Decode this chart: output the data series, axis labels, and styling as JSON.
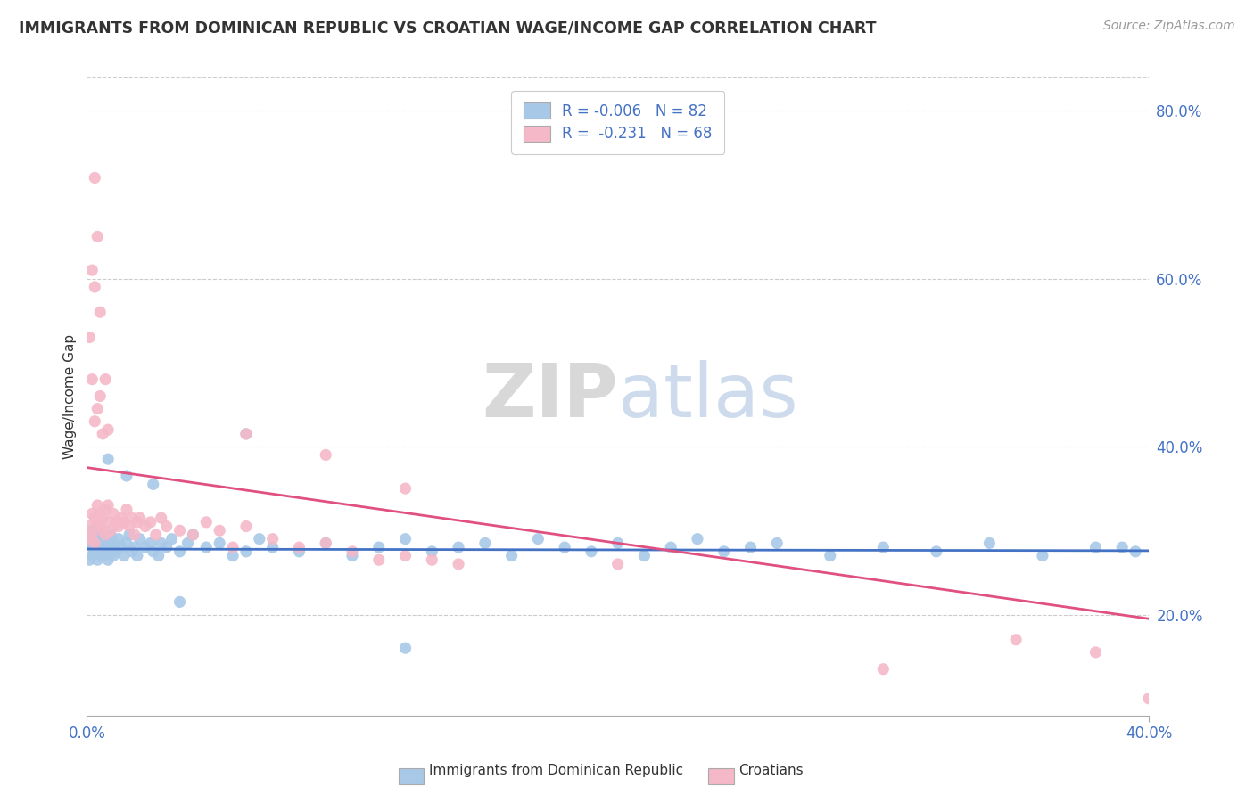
{
  "title": "IMMIGRANTS FROM DOMINICAN REPUBLIC VS CROATIAN WAGE/INCOME GAP CORRELATION CHART",
  "source_text": "Source: ZipAtlas.com",
  "ylabel": "Wage/Income Gap",
  "right_yticks": [
    "20.0%",
    "40.0%",
    "60.0%",
    "80.0%"
  ],
  "right_ytick_vals": [
    0.2,
    0.4,
    0.6,
    0.8
  ],
  "xmin": 0.0,
  "xmax": 0.4,
  "ymin": 0.08,
  "ymax": 0.84,
  "color_blue": "#a8c8e8",
  "color_pink": "#f4b8c8",
  "color_blue_text": "#4472c4",
  "color_line_blue": "#4472c4",
  "color_line_pink": "#e05080",
  "legend_label_blue": "Immigrants from Dominican Republic",
  "legend_label_pink": "Croatians",
  "blue_line_y0": 0.278,
  "blue_line_y1": 0.276,
  "pink_line_y0": 0.375,
  "pink_line_y1": 0.195,
  "blue_scatter_x": [
    0.001,
    0.001,
    0.001,
    0.002,
    0.002,
    0.002,
    0.003,
    0.003,
    0.003,
    0.004,
    0.004,
    0.005,
    0.005,
    0.006,
    0.006,
    0.007,
    0.007,
    0.008,
    0.008,
    0.009,
    0.009,
    0.01,
    0.01,
    0.011,
    0.012,
    0.013,
    0.014,
    0.015,
    0.016,
    0.017,
    0.018,
    0.019,
    0.02,
    0.022,
    0.024,
    0.025,
    0.027,
    0.028,
    0.03,
    0.032,
    0.035,
    0.038,
    0.04,
    0.045,
    0.05,
    0.055,
    0.06,
    0.065,
    0.07,
    0.08,
    0.09,
    0.1,
    0.11,
    0.12,
    0.13,
    0.14,
    0.15,
    0.16,
    0.17,
    0.18,
    0.19,
    0.2,
    0.21,
    0.22,
    0.23,
    0.24,
    0.26,
    0.28,
    0.3,
    0.32,
    0.34,
    0.36,
    0.38,
    0.395,
    0.008,
    0.015,
    0.025,
    0.035,
    0.06,
    0.12,
    0.25,
    0.39
  ],
  "blue_scatter_y": [
    0.285,
    0.295,
    0.265,
    0.28,
    0.3,
    0.27,
    0.29,
    0.275,
    0.285,
    0.295,
    0.265,
    0.28,
    0.295,
    0.27,
    0.285,
    0.29,
    0.275,
    0.285,
    0.265,
    0.28,
    0.295,
    0.27,
    0.285,
    0.275,
    0.29,
    0.28,
    0.27,
    0.285,
    0.295,
    0.275,
    0.28,
    0.27,
    0.29,
    0.28,
    0.285,
    0.275,
    0.27,
    0.285,
    0.28,
    0.29,
    0.275,
    0.285,
    0.295,
    0.28,
    0.285,
    0.27,
    0.275,
    0.29,
    0.28,
    0.275,
    0.285,
    0.27,
    0.28,
    0.29,
    0.275,
    0.28,
    0.285,
    0.27,
    0.29,
    0.28,
    0.275,
    0.285,
    0.27,
    0.28,
    0.29,
    0.275,
    0.285,
    0.27,
    0.28,
    0.275,
    0.285,
    0.27,
    0.28,
    0.275,
    0.385,
    0.365,
    0.355,
    0.215,
    0.415,
    0.16,
    0.28,
    0.28
  ],
  "pink_scatter_x": [
    0.001,
    0.001,
    0.002,
    0.002,
    0.003,
    0.003,
    0.004,
    0.004,
    0.005,
    0.005,
    0.006,
    0.006,
    0.007,
    0.007,
    0.008,
    0.008,
    0.009,
    0.01,
    0.011,
    0.012,
    0.013,
    0.014,
    0.015,
    0.016,
    0.017,
    0.018,
    0.019,
    0.02,
    0.022,
    0.024,
    0.026,
    0.028,
    0.03,
    0.035,
    0.04,
    0.045,
    0.05,
    0.055,
    0.06,
    0.07,
    0.08,
    0.09,
    0.1,
    0.11,
    0.12,
    0.13,
    0.14,
    0.003,
    0.004,
    0.005,
    0.006,
    0.007,
    0.008,
    0.001,
    0.002,
    0.003,
    0.004,
    0.002,
    0.003,
    0.005,
    0.06,
    0.09,
    0.12,
    0.2,
    0.3,
    0.35,
    0.38,
    0.4
  ],
  "pink_scatter_y": [
    0.305,
    0.29,
    0.32,
    0.295,
    0.315,
    0.285,
    0.33,
    0.31,
    0.305,
    0.32,
    0.3,
    0.315,
    0.325,
    0.295,
    0.31,
    0.33,
    0.3,
    0.32,
    0.31,
    0.305,
    0.315,
    0.31,
    0.325,
    0.305,
    0.315,
    0.295,
    0.31,
    0.315,
    0.305,
    0.31,
    0.295,
    0.315,
    0.305,
    0.3,
    0.295,
    0.31,
    0.3,
    0.28,
    0.305,
    0.29,
    0.28,
    0.285,
    0.275,
    0.265,
    0.27,
    0.265,
    0.26,
    0.43,
    0.445,
    0.46,
    0.415,
    0.48,
    0.42,
    0.53,
    0.48,
    0.72,
    0.65,
    0.61,
    0.59,
    0.56,
    0.415,
    0.39,
    0.35,
    0.26,
    0.135,
    0.17,
    0.155,
    0.1
  ]
}
